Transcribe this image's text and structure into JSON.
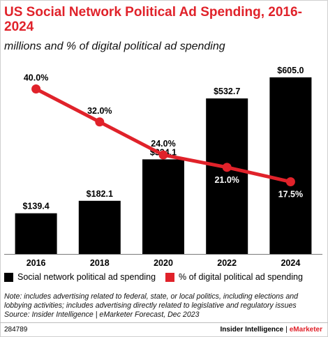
{
  "header": {
    "title": "US Social Network Political Ad Spending, 2016-2024",
    "subtitle": "millions and % of digital political ad spending"
  },
  "chart_data": {
    "type": "bar",
    "categories": [
      "2016",
      "2018",
      "2020",
      "2022",
      "2024"
    ],
    "series": [
      {
        "name": "Social network political ad spending",
        "type": "bar",
        "values": [
          139.4,
          182.1,
          324.1,
          532.7,
          605.0
        ],
        "labels": [
          "$139.4",
          "$182.1",
          "$324.1",
          "$532.7",
          "$605.0"
        ],
        "color": "#000000"
      },
      {
        "name": "% of digital political ad spending",
        "type": "line",
        "values": [
          40.0,
          32.0,
          24.0,
          21.0,
          17.5
        ],
        "labels": [
          "40.0%",
          "32.0%",
          "24.0%",
          "21.0%",
          "17.5%"
        ],
        "color": "#e0222a"
      }
    ],
    "ylim_bars": [
      0,
      650
    ],
    "ylim_line": [
      0,
      46
    ],
    "legend_position": "bottom",
    "grid": false
  },
  "notes": {
    "lines": [
      "Note: includes advertising related to federal, state, or local politics, including elections and",
      "lobbying activities; includes advertising directly related to legislative and regulatory issues",
      "Source: Insider Intelligence | eMarketer Forecast, Dec 2023"
    ]
  },
  "footer": {
    "id": "284789",
    "brand_left": "Insider Intelligence",
    "brand_sep": "|",
    "brand_right": "eMarketer"
  }
}
